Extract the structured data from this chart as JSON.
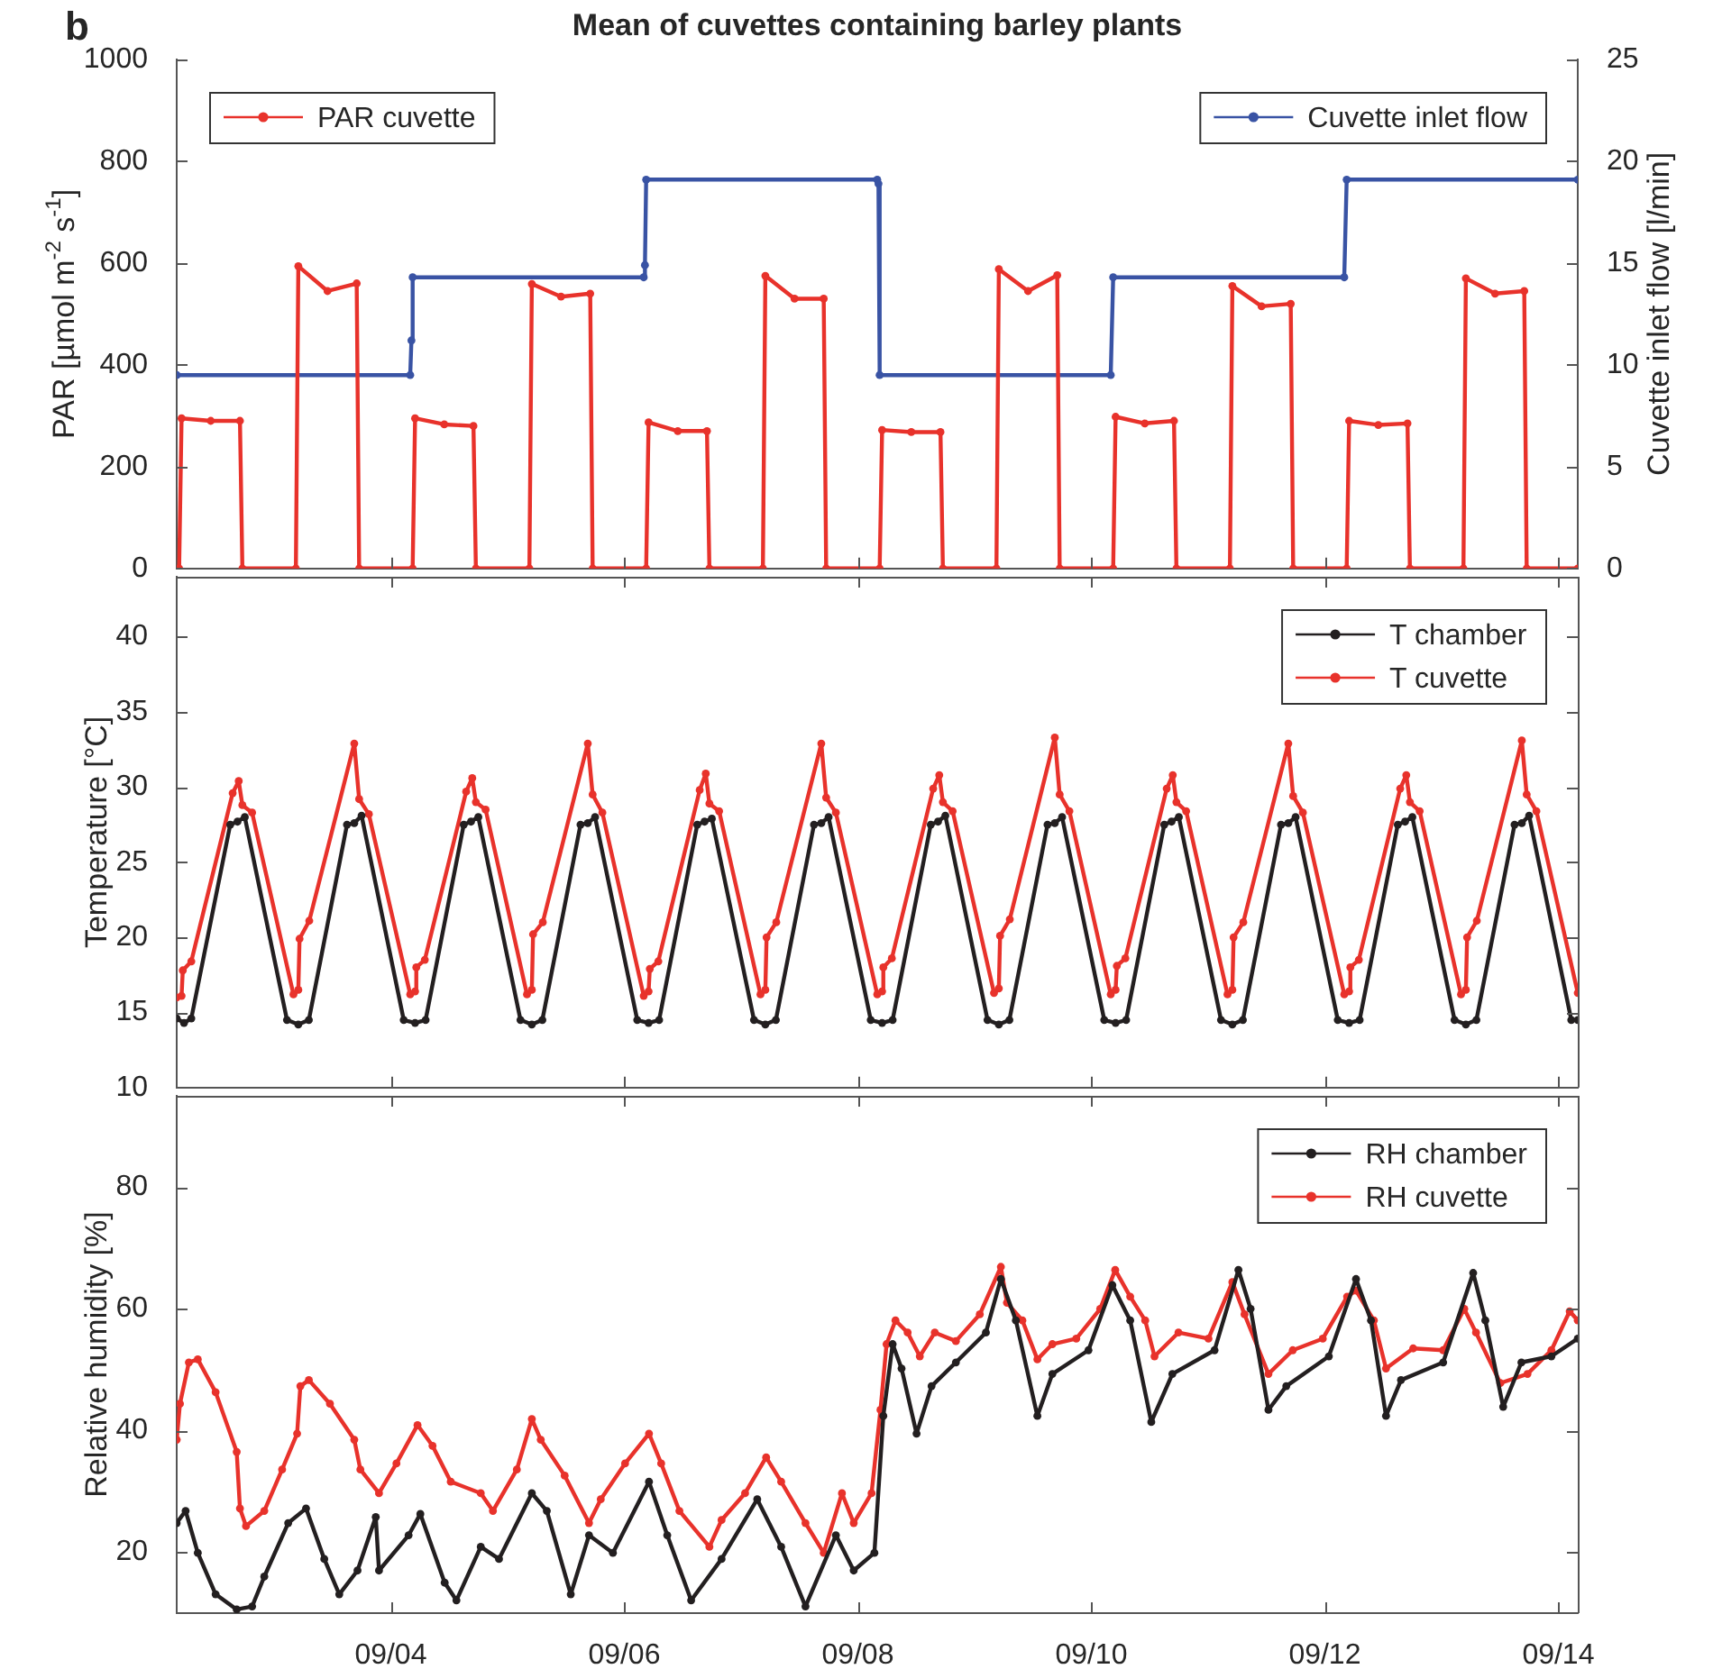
{
  "chart_data": [
    {
      "type": "line",
      "title": "Mean of cuvettes containing barley plants",
      "annotations": [
        "b"
      ],
      "ylabel": "PAR [µmol m$^{-2}$ s$^{-1}$]",
      "y2label": "Cuvette inlet flow [l/min]",
      "xlim": [
        "--09-02T04:00",
        "--09-14T04:00"
      ],
      "xticks": [
        {
          "value": "--09-04",
          "label": null
        },
        {
          "value": "--09-06",
          "label": null
        },
        {
          "value": "--09-08",
          "label": null
        },
        {
          "value": "--09-10",
          "label": null
        },
        {
          "value": "--09-12",
          "label": null
        },
        {
          "value": "--09-14",
          "label": null
        }
      ],
      "ylim": [
        0,
        1000
      ],
      "yticks": [
        0,
        200,
        400,
        600,
        800,
        1000
      ],
      "y2lim": [
        0,
        25
      ],
      "y2ticks": [
        0,
        5,
        10,
        15,
        20,
        25
      ],
      "tick_labels": "y",
      "legend": "top",
      "marker": "circle",
      "line_style": "solid",
      "series": [
        {
          "name": "PAR cuvette",
          "color": "#e8322b",
          "x": [
            "--09-02T04:00",
            "--09-02T04:30",
            "--09-02T05:00",
            "--09-02T11:00",
            "--09-02T17:00",
            "--09-02T17:30",
            "--09-03T04:30",
            "--09-03T05:00",
            "--09-03T11:00",
            "--09-03T17:00",
            "--09-03T17:30",
            "--09-04T04:30",
            "--09-04T05:00",
            "--09-04T11:00",
            "--09-04T17:00",
            "--09-04T17:30",
            "--09-05T04:30",
            "--09-05T05:00",
            "--09-05T11:00",
            "--09-05T17:00",
            "--09-05T17:30",
            "--09-06T04:30",
            "--09-06T05:00",
            "--09-06T11:00",
            "--09-06T17:00",
            "--09-06T17:30",
            "--09-07T04:30",
            "--09-07T05:00",
            "--09-07T11:00",
            "--09-07T17:00",
            "--09-07T17:30",
            "--09-08T04:30",
            "--09-08T05:00",
            "--09-08T11:00",
            "--09-08T17:00",
            "--09-08T17:30",
            "--09-09T04:30",
            "--09-09T05:00",
            "--09-09T11:00",
            "--09-09T17:00",
            "--09-09T17:30",
            "--09-10T04:30",
            "--09-10T05:00",
            "--09-10T11:00",
            "--09-10T17:00",
            "--09-10T17:30",
            "--09-11T04:30",
            "--09-11T05:00",
            "--09-11T11:00",
            "--09-11T17:00",
            "--09-11T17:30",
            "--09-12T04:30",
            "--09-12T05:00",
            "--09-12T11:00",
            "--09-12T17:00",
            "--09-12T17:30",
            "--09-13T04:30",
            "--09-13T05:00",
            "--09-13T11:00",
            "--09-13T17:00",
            "--09-13T17:30",
            "--09-14T04:00"
          ],
          "values": [
            0,
            0,
            295,
            290,
            290,
            0,
            0,
            594,
            545,
            560,
            0,
            0,
            295,
            283,
            280,
            0,
            0,
            559,
            534,
            540,
            0,
            0,
            287,
            270,
            270,
            0,
            0,
            575,
            530,
            530,
            0,
            0,
            272,
            268,
            268,
            0,
            0,
            588,
            545,
            576,
            0,
            0,
            298,
            285,
            290,
            0,
            0,
            555,
            515,
            520,
            0,
            0,
            290,
            282,
            285,
            0,
            0,
            570,
            540,
            545,
            0,
            0
          ]
        },
        {
          "name": "Cuvette inlet flow",
          "color": "#3953a4",
          "axis": "y2",
          "x": [
            "--09-02T04:00",
            "--09-04T04:00",
            "--09-04T04:15",
            "--09-04T04:30",
            "--09-06T04:00",
            "--09-06T04:15",
            "--09-06T04:30",
            "--09-08T04:00",
            "--09-08T04:15",
            "--09-08T04:30",
            "--09-10T04:00",
            "--09-10T04:30",
            "--09-12T04:00",
            "--09-12T04:30",
            "--09-14T04:00"
          ],
          "values": [
            9.5,
            9.5,
            11.2,
            14.3,
            14.3,
            14.9,
            19.1,
            19.1,
            18.9,
            9.5,
            9.5,
            14.3,
            14.3,
            19.1,
            19.1
          ]
        }
      ]
    },
    {
      "type": "line",
      "ylabel": "Temperature [°C]",
      "xlim": [
        "--09-02T04:00",
        "--09-14T04:00"
      ],
      "xticks": [
        {
          "value": "--09-04",
          "label": null
        },
        {
          "value": "--09-06",
          "label": null
        },
        {
          "value": "--09-08",
          "label": null
        },
        {
          "value": "--09-10",
          "label": null
        },
        {
          "value": "--09-12",
          "label": null
        },
        {
          "value": "--09-14",
          "label": null
        }
      ],
      "ylim": [
        10,
        44
      ],
      "yticks": [
        10,
        15,
        20,
        25,
        30,
        35,
        40
      ],
      "tick_labels": "y",
      "legend": "top right",
      "marker": "circle",
      "line_style": "solid",
      "series": [
        {
          "name": "T chamber",
          "color": "#231f20",
          "x": [
            "--09-02T04:00",
            "--09-02T05:30",
            "--09-02T07:00",
            "--09-02T15:00",
            "--09-02T16:30",
            "--09-02T18:00",
            "--09-03T02:40",
            "--09-03T05:00",
            "--09-03T07:10",
            "--09-03T15:00",
            "--09-03T16:30",
            "--09-03T18:00",
            "--09-04T02:40",
            "--09-04T05:00",
            "--09-04T07:10",
            "--09-04T15:00",
            "--09-04T16:30",
            "--09-04T18:00",
            "--09-05T02:40",
            "--09-05T05:00",
            "--09-05T07:10",
            "--09-05T15:00",
            "--09-05T16:30",
            "--09-05T18:00",
            "--09-06T02:40",
            "--09-06T05:00",
            "--09-06T07:10",
            "--09-06T15:00",
            "--09-06T16:30",
            "--09-06T18:00",
            "--09-07T02:40",
            "--09-07T05:00",
            "--09-07T07:10",
            "--09-07T15:00",
            "--09-07T16:30",
            "--09-07T18:00",
            "--09-08T02:40",
            "--09-08T05:00",
            "--09-08T07:10",
            "--09-08T15:00",
            "--09-08T16:30",
            "--09-08T18:00",
            "--09-09T02:40",
            "--09-09T05:00",
            "--09-09T07:10",
            "--09-09T15:00",
            "--09-09T16:30",
            "--09-09T18:00",
            "--09-10T02:40",
            "--09-10T05:00",
            "--09-10T07:10",
            "--09-10T15:00",
            "--09-10T16:30",
            "--09-10T18:00",
            "--09-11T02:40",
            "--09-11T05:00",
            "--09-11T07:10",
            "--09-11T15:00",
            "--09-11T16:30",
            "--09-11T18:00",
            "--09-12T02:40",
            "--09-12T05:00",
            "--09-12T07:10",
            "--09-12T15:00",
            "--09-12T16:30",
            "--09-12T18:00",
            "--09-13T02:40",
            "--09-13T05:00",
            "--09-13T07:10",
            "--09-13T15:00",
            "--09-13T16:30",
            "--09-13T18:00",
            "--09-14T02:40",
            "--09-14T04:00"
          ],
          "values": [
            14.6,
            14.3,
            14.6,
            27.5,
            27.7,
            28.0,
            14.5,
            14.2,
            14.5,
            27.5,
            27.6,
            28.1,
            14.5,
            14.3,
            14.5,
            27.5,
            27.7,
            28.0,
            14.5,
            14.2,
            14.5,
            27.5,
            27.6,
            28.0,
            14.5,
            14.3,
            14.5,
            27.5,
            27.7,
            27.9,
            14.5,
            14.2,
            14.5,
            27.5,
            27.6,
            28.0,
            14.5,
            14.3,
            14.5,
            27.5,
            27.7,
            28.1,
            14.5,
            14.2,
            14.5,
            27.5,
            27.6,
            28.0,
            14.5,
            14.3,
            14.5,
            27.5,
            27.7,
            28.0,
            14.5,
            14.2,
            14.5,
            27.5,
            27.6,
            28.0,
            14.5,
            14.3,
            14.5,
            27.5,
            27.7,
            28.0,
            14.5,
            14.2,
            14.5,
            27.5,
            27.6,
            28.1,
            14.5,
            14.5
          ]
        },
        {
          "name": "T cuvette",
          "color": "#e8322b",
          "x": [
            "--09-02T04:00",
            "--09-02T05:00",
            "--09-02T05:15",
            "--09-02T07:00",
            "--09-02T15:30",
            "--09-02T16:45",
            "--09-02T17:30",
            "--09-02T19:30",
            "--09-03T04:00",
            "--09-03T05:00",
            "--09-03T05:15",
            "--09-03T07:15",
            "--09-03T16:30",
            "--09-03T17:30",
            "--09-03T19:30",
            "--09-04T04:00",
            "--09-04T05:00",
            "--09-04T05:15",
            "--09-04T07:00",
            "--09-04T15:30",
            "--09-04T16:45",
            "--09-04T17:30",
            "--09-04T19:30",
            "--09-05T04:00",
            "--09-05T05:00",
            "--09-05T05:15",
            "--09-05T07:15",
            "--09-05T16:30",
            "--09-05T17:30",
            "--09-05T19:30",
            "--09-06T04:00",
            "--09-06T05:00",
            "--09-06T05:15",
            "--09-06T07:00",
            "--09-06T15:30",
            "--09-06T16:45",
            "--09-06T17:30",
            "--09-06T19:30",
            "--09-07T04:00",
            "--09-07T05:00",
            "--09-07T05:15",
            "--09-07T07:15",
            "--09-07T16:30",
            "--09-07T17:30",
            "--09-07T19:30",
            "--09-08T04:00",
            "--09-08T05:00",
            "--09-08T05:15",
            "--09-08T07:00",
            "--09-08T15:30",
            "--09-08T16:45",
            "--09-08T17:30",
            "--09-08T19:30",
            "--09-09T04:00",
            "--09-09T05:00",
            "--09-09T05:15",
            "--09-09T07:15",
            "--09-09T16:30",
            "--09-09T17:30",
            "--09-09T19:30",
            "--09-10T04:00",
            "--09-10T05:00",
            "--09-10T05:15",
            "--09-10T07:00",
            "--09-10T15:30",
            "--09-10T16:45",
            "--09-10T17:30",
            "--09-10T19:30",
            "--09-11T04:00",
            "--09-11T05:00",
            "--09-11T05:15",
            "--09-11T07:15",
            "--09-11T16:30",
            "--09-11T17:30",
            "--09-11T19:30",
            "--09-12T04:00",
            "--09-12T05:00",
            "--09-12T05:15",
            "--09-12T07:00",
            "--09-12T15:30",
            "--09-12T16:45",
            "--09-12T17:30",
            "--09-12T19:30",
            "--09-13T04:00",
            "--09-13T05:00",
            "--09-13T05:15",
            "--09-13T07:15",
            "--09-13T16:30",
            "--09-13T17:30",
            "--09-13T19:30",
            "--09-14T04:00"
          ],
          "values": [
            16.0,
            16.1,
            17.8,
            18.4,
            29.6,
            30.4,
            28.8,
            28.3,
            16.2,
            16.5,
            19.9,
            21.1,
            32.9,
            29.2,
            28.2,
            16.2,
            16.4,
            18.0,
            18.5,
            29.7,
            30.6,
            29.0,
            28.5,
            16.2,
            16.5,
            20.2,
            21.0,
            32.9,
            29.5,
            28.3,
            16.1,
            16.4,
            17.9,
            18.4,
            29.8,
            30.9,
            28.9,
            28.4,
            16.2,
            16.5,
            20.0,
            21.0,
            32.9,
            29.3,
            28.3,
            16.2,
            16.4,
            18.0,
            18.6,
            29.9,
            30.8,
            29.0,
            28.4,
            16.3,
            16.6,
            20.1,
            21.2,
            33.3,
            29.5,
            28.4,
            16.2,
            16.5,
            18.1,
            18.6,
            29.9,
            30.8,
            29.0,
            28.4,
            16.2,
            16.5,
            20.0,
            21.0,
            32.9,
            29.4,
            28.3,
            16.2,
            16.4,
            18.0,
            18.5,
            29.9,
            30.8,
            29.0,
            28.4,
            16.2,
            16.5,
            20.0,
            21.1,
            33.1,
            29.5,
            28.4,
            16.3
          ]
        }
      ]
    },
    {
      "type": "line",
      "ylabel": "Relative humidity [%]",
      "xlim": [
        "--09-02T04:00",
        "--09-14T04:00"
      ],
      "xticks": [
        {
          "value": "--09-04",
          "label": "09/04"
        },
        {
          "value": "--09-06",
          "label": "09/06"
        },
        {
          "value": "--09-08",
          "label": "09/08"
        },
        {
          "value": "--09-10",
          "label": "09/10"
        },
        {
          "value": "--09-12",
          "label": "09/12"
        },
        {
          "value": "--09-14",
          "label": "09/14"
        }
      ],
      "ylim": [
        10,
        95
      ],
      "yticks": [
        20,
        40,
        60,
        80
      ],
      "legend": "top right",
      "marker": "circle",
      "line_style": "solid",
      "series": [
        {
          "name": "RH chamber",
          "color": "#231f20",
          "x": [
            "--09-02T04:00",
            "--09-02T05:50",
            "--09-02T08:20",
            "--09-02T12:00",
            "--09-02T16:20",
            "--09-02T19:30",
            "--09-02T22:00",
            "--09-03T02:55",
            "--09-03T06:35",
            "--09-03T10:20",
            "--09-03T13:25",
            "--09-03T17:10",
            "--09-03T20:55",
            "--09-03T21:35",
            "--09-04T03:40",
            "--09-04T06:05",
            "--09-04T11:05",
            "--09-04T13:30",
            "--09-04T18:30",
            "--09-04T22:15",
            "--09-05T05:00",
            "--09-05T08:05",
            "--09-05T13:00",
            "--09-05T16:45",
            "--09-05T21:40",
            "--09-06T05:05",
            "--09-06T08:50",
            "--09-06T13:45",
            "--09-06T20:00",
            "--09-07T03:20",
            "--09-07T08:15",
            "--09-07T13:15",
            "--09-07T19:30",
            "--09-07T23:10",
            "--09-08T03:25",
            "--09-08T05:15",
            "--09-08T07:10",
            "--09-08T09:00",
            "--09-08T12:05",
            "--09-08T15:10",
            "--09-08T20:10",
            "--09-09T02:20",
            "--09-09T05:25",
            "--09-09T08:30",
            "--09-09T12:55",
            "--09-09T16:00",
            "--09-09T23:25",
            "--09-10T04:20",
            "--09-10T08:00",
            "--09-10T12:20",
            "--09-10T16:40",
            "--09-11T01:20",
            "--09-11T06:15",
            "--09-11T08:45",
            "--09-11T12:25",
            "--09-11T16:05",
            "--09-12T00:50",
            "--09-12T06:25",
            "--09-12T09:30",
            "--09-12T12:35",
            "--09-12T15:40",
            "--09-13T00:20",
            "--09-13T06:30",
            "--09-13T09:00",
            "--09-13T12:40",
            "--09-13T16:25",
            "--09-13T22:35",
            "--09-14T04:00"
          ],
          "values": [
            24.8,
            26.8,
            19.9,
            13.1,
            10.6,
            11.1,
            16.0,
            24.8,
            27.2,
            18.9,
            13.1,
            17.0,
            25.8,
            17.0,
            22.8,
            26.3,
            15.0,
            12.1,
            20.9,
            18.9,
            29.7,
            26.8,
            13.1,
            22.8,
            19.9,
            31.6,
            22.8,
            12.1,
            18.9,
            28.7,
            20.9,
            11.1,
            22.8,
            17.0,
            19.9,
            42.4,
            54.2,
            50.2,
            39.5,
            47.3,
            51.2,
            56.1,
            64.9,
            58.1,
            42.4,
            49.3,
            53.2,
            63.9,
            58.1,
            41.4,
            49.3,
            53.2,
            66.4,
            60.0,
            43.4,
            47.3,
            52.2,
            64.9,
            58.1,
            42.4,
            48.3,
            51.2,
            65.9,
            58.1,
            43.9,
            51.2,
            52.2,
            55.1
          ]
        },
        {
          "name": "RH cuvette",
          "color": "#e8322b",
          "x": [
            "--09-02T04:00",
            "--09-02T04:40",
            "--09-02T06:30",
            "--09-02T08:20",
            "--09-02T12:00",
            "--09-02T16:20",
            "--09-02T17:00",
            "--09-02T18:15",
            "--09-02T22:00",
            "--09-03T01:40",
            "--09-03T04:45",
            "--09-03T05:25",
            "--09-03T07:10",
            "--09-03T11:30",
            "--09-03T16:30",
            "--09-03T17:45",
            "--09-03T21:35",
            "--09-04T01:10",
            "--09-04T05:30",
            "--09-04T08:35",
            "--09-04T12:20",
            "--09-04T18:30",
            "--09-04T21:00",
            "--09-05T01:55",
            "--09-05T05:00",
            "--09-05T06:50",
            "--09-05T11:45",
            "--09-05T16:45",
            "--09-05T19:10",
            "--09-06T00:10",
            "--09-06T05:05",
            "--09-06T07:35",
            "--09-06T11:20",
            "--09-06T17:30",
            "--09-06T20:00",
            "--09-07T00:50",
            "--09-07T05:10",
            "--09-07T08:15",
            "--09-07T13:15",
            "--09-07T17:00",
            "--09-07T20:45",
            "--09-07T23:10",
            "--09-08T02:50",
            "--09-08T04:40",
            "--09-08T05:55",
            "--09-08T07:45",
            "--09-08T10:15",
            "--09-08T12:45",
            "--09-08T15:50",
            "--09-08T20:10",
            "--09-09T01:05",
            "--09-09T05:25",
            "--09-09T06:40",
            "--09-09T09:50",
            "--09-09T12:55",
            "--09-09T16:00",
            "--09-09T20:55",
            "--09-10T01:50",
            "--09-10T04:55",
            "--09-10T08:00",
            "--09-10T11:05",
            "--09-10T13:00",
            "--09-10T17:55",
            "--09-11T00:05",
            "--09-11T05:00",
            "--09-11T07:30",
            "--09-11T12:25",
            "--09-11T17:25",
            "--09-11T23:35",
            "--09-12T04:35",
            "--09-12T06:25",
            "--09-12T10:05",
            "--09-12T12:35",
            "--09-12T18:10",
            "--09-13T00:20",
            "--09-13T04:40",
            "--09-13T07:05",
            "--09-13T12:05",
            "--09-13T17:40",
            "--09-13T22:35",
            "--09-14T02:20",
            "--09-14T04:00"
          ],
          "values": [
            38.5,
            44.4,
            51.2,
            51.7,
            46.3,
            36.5,
            27.2,
            24.3,
            26.8,
            33.6,
            39.5,
            47.3,
            48.3,
            44.4,
            38.5,
            33.6,
            29.7,
            34.6,
            40.9,
            37.5,
            31.6,
            29.7,
            26.8,
            33.6,
            41.9,
            38.5,
            32.6,
            24.8,
            28.7,
            34.6,
            39.5,
            34.6,
            26.8,
            20.9,
            25.3,
            29.7,
            35.6,
            31.6,
            24.8,
            19.9,
            29.7,
            24.8,
            29.7,
            43.4,
            54.2,
            58.1,
            56.1,
            52.2,
            56.1,
            54.7,
            59.1,
            66.9,
            61.0,
            58.1,
            51.7,
            54.2,
            55.1,
            60.0,
            66.4,
            62.0,
            58.1,
            52.2,
            56.1,
            55.1,
            64.4,
            59.1,
            49.3,
            53.2,
            55.1,
            62.0,
            63.0,
            58.1,
            50.2,
            53.5,
            53.2,
            60.0,
            56.1,
            47.8,
            49.3,
            53.2,
            59.6,
            58.1
          ]
        }
      ]
    }
  ]
}
